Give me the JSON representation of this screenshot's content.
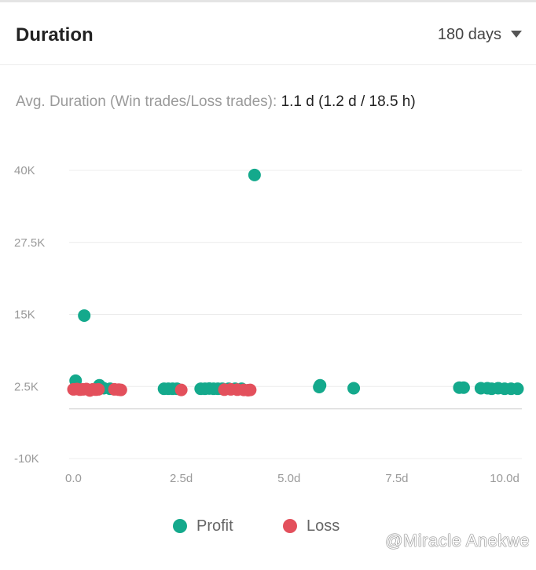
{
  "header": {
    "title": "Duration",
    "period": "180 days"
  },
  "summary": {
    "label": "Avg. Duration (Win trades/Loss trades):",
    "value": "1.1 d (1.2 d / 18.5 h)"
  },
  "colors": {
    "profit": "#14a98c",
    "loss": "#e3505c",
    "grid": "#ececec",
    "axis_text": "#9a9a9a"
  },
  "watermark": "@Miracle Anekwe",
  "chart_data": {
    "type": "scatter",
    "xlim": [
      -0.1,
      10.4
    ],
    "ylim": [
      -10000,
      40000
    ],
    "x_ticks": [
      0,
      2.5,
      5,
      7.5,
      10
    ],
    "x_tick_labels": [
      "0.0",
      "2.5d",
      "5.0d",
      "7.5d",
      "10.0d"
    ],
    "y_ticks": [
      -10000,
      2500,
      15000,
      27500,
      40000
    ],
    "y_tick_labels": [
      "-10K",
      "2.5K",
      "15K",
      "27.5K",
      "40K"
    ],
    "grid": true,
    "legend": "bottom-center",
    "series": [
      {
        "name": "Profit",
        "points": [
          [
            0.05,
            3500
          ],
          [
            0.25,
            14800
          ],
          [
            0.6,
            2700
          ],
          [
            0.7,
            2200
          ],
          [
            0.85,
            2100
          ],
          [
            2.1,
            2100
          ],
          [
            2.2,
            2100
          ],
          [
            2.3,
            2100
          ],
          [
            2.4,
            2100
          ],
          [
            2.95,
            2100
          ],
          [
            3.05,
            2100
          ],
          [
            3.15,
            2150
          ],
          [
            3.25,
            2100
          ],
          [
            3.35,
            2100
          ],
          [
            3.45,
            2100
          ],
          [
            3.6,
            2100
          ],
          [
            3.75,
            2100
          ],
          [
            3.9,
            2100
          ],
          [
            4.2,
            39200
          ],
          [
            5.7,
            2400
          ],
          [
            5.72,
            2700
          ],
          [
            6.5,
            2200
          ],
          [
            8.95,
            2300
          ],
          [
            9.05,
            2300
          ],
          [
            9.45,
            2200
          ],
          [
            9.6,
            2200
          ],
          [
            9.7,
            2100
          ],
          [
            9.85,
            2200
          ],
          [
            10.0,
            2100
          ],
          [
            10.15,
            2100
          ],
          [
            10.3,
            2100
          ]
        ]
      },
      {
        "name": "Loss",
        "points": [
          [
            0.0,
            2000
          ],
          [
            0.08,
            2050
          ],
          [
            0.15,
            1950
          ],
          [
            0.22,
            2000
          ],
          [
            0.3,
            2050
          ],
          [
            0.38,
            1800
          ],
          [
            0.45,
            2000
          ],
          [
            0.52,
            1950
          ],
          [
            0.58,
            2000
          ],
          [
            0.95,
            2000
          ],
          [
            1.05,
            1950
          ],
          [
            1.1,
            1900
          ],
          [
            2.5,
            1900
          ],
          [
            3.5,
            1950
          ],
          [
            3.65,
            2000
          ],
          [
            3.8,
            1950
          ],
          [
            3.95,
            1900
          ],
          [
            4.05,
            1850
          ],
          [
            4.1,
            1900
          ]
        ]
      }
    ]
  }
}
